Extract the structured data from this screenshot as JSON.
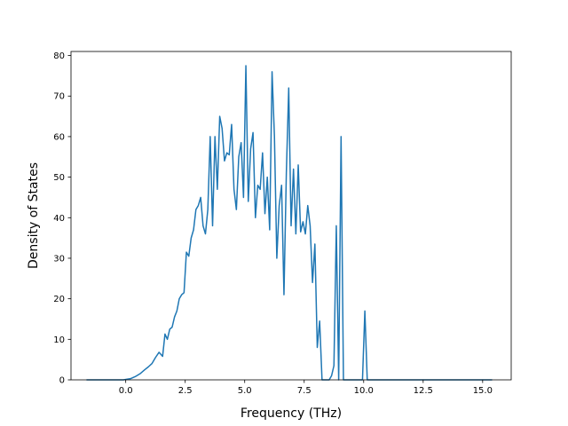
{
  "chart_data": {
    "type": "line",
    "title": "",
    "xlabel": "Frequency (THz)",
    "ylabel": "Density of States",
    "xlim": [
      -2.3,
      16.2
    ],
    "ylim": [
      0,
      81
    ],
    "x_ticks": [
      0.0,
      2.5,
      5.0,
      7.5,
      10.0,
      12.5,
      15.0
    ],
    "x_tick_labels": [
      "0.0",
      "2.5",
      "5.0",
      "7.5",
      "10.0",
      "12.5",
      "15.0"
    ],
    "y_ticks": [
      0,
      10,
      20,
      30,
      40,
      50,
      60,
      70,
      80
    ],
    "y_tick_labels": [
      "0",
      "10",
      "20",
      "30",
      "40",
      "50",
      "60",
      "70",
      "80"
    ],
    "grid": false,
    "legend": "none",
    "series": [
      {
        "color": "#1f77b4",
        "x": [
          -1.65,
          -1.2,
          -0.6,
          -0.1,
          0.2,
          0.4,
          0.6,
          0.8,
          0.95,
          1.1,
          1.25,
          1.4,
          1.55,
          1.65,
          1.75,
          1.85,
          1.95,
          2.05,
          2.15,
          2.25,
          2.35,
          2.45,
          2.55,
          2.65,
          2.75,
          2.85,
          2.95,
          3.05,
          3.15,
          3.25,
          3.35,
          3.45,
          3.55,
          3.65,
          3.75,
          3.85,
          3.95,
          4.05,
          4.15,
          4.25,
          4.35,
          4.45,
          4.55,
          4.65,
          4.75,
          4.85,
          4.95,
          5.05,
          5.15,
          5.25,
          5.35,
          5.45,
          5.55,
          5.65,
          5.75,
          5.85,
          5.95,
          6.05,
          6.15,
          6.25,
          6.35,
          6.45,
          6.55,
          6.65,
          6.75,
          6.85,
          6.95,
          7.05,
          7.15,
          7.25,
          7.35,
          7.45,
          7.55,
          7.65,
          7.75,
          7.85,
          7.95,
          8.05,
          8.15,
          8.25,
          8.35,
          8.45,
          8.55,
          8.65,
          8.75,
          8.85,
          8.95,
          9.05,
          9.15,
          9.25,
          9.4,
          9.6,
          9.8,
          9.95,
          10.05,
          10.15,
          10.3,
          10.6,
          11.0,
          12.0,
          13.0,
          14.0,
          15.0,
          15.4
        ],
        "y": [
          0,
          0,
          0,
          0,
          0.3,
          0.8,
          1.5,
          2.5,
          3.2,
          4.0,
          5.5,
          6.8,
          5.8,
          11.3,
          10.0,
          12.5,
          13.0,
          15.5,
          17.0,
          20.0,
          21.0,
          21.5,
          31.5,
          30.5,
          35.0,
          37.0,
          42.0,
          43.0,
          45.0,
          38.0,
          36.0,
          42.0,
          60.0,
          38.0,
          60.0,
          47.0,
          65.0,
          62.0,
          54.0,
          56.0,
          55.5,
          63.0,
          47.0,
          42.0,
          55.0,
          58.5,
          45.0,
          77.5,
          44.0,
          57.0,
          61.0,
          40.0,
          48.0,
          47.0,
          56.0,
          41.0,
          50.0,
          37.0,
          76.0,
          60.0,
          30.0,
          43.0,
          48.0,
          21.0,
          51.0,
          72.0,
          38.0,
          52.0,
          36.0,
          53.0,
          36.5,
          39.0,
          36.0,
          43.0,
          38.0,
          24.0,
          33.5,
          8.0,
          14.5,
          0,
          0,
          0,
          0,
          1.0,
          3.5,
          38.0,
          0,
          60.0,
          0,
          0,
          0,
          0,
          0,
          0,
          17.0,
          0,
          0,
          0,
          0,
          0,
          0,
          0,
          0,
          0
        ]
      }
    ]
  }
}
